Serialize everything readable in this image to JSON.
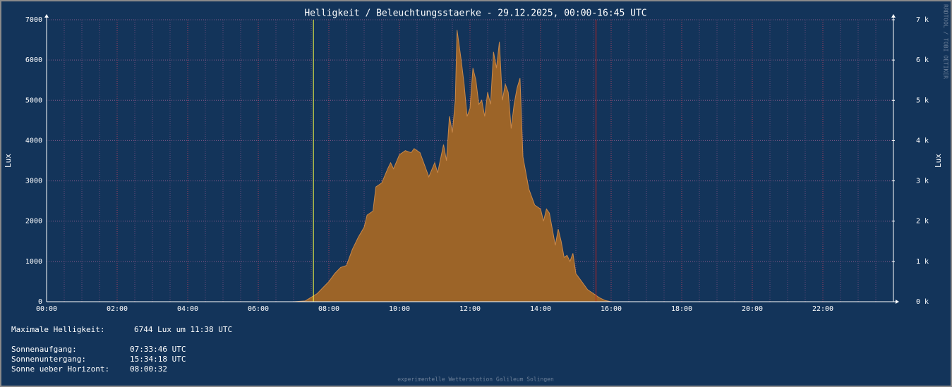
{
  "chart_data": {
    "type": "area",
    "title": "Helligkeit / Beleuchtungsstaerke - 29.12.2025, 00:00-16:45 UTC",
    "ylabel": "Lux",
    "y2label": "Lux",
    "side_text": "RRDTOOL / TOBI OETIKER",
    "footer": "experimentelle Wetterstation Galileum Solingen",
    "xlim": [
      0,
      24
    ],
    "xticks": [
      {
        "value": 0,
        "label": "00:00"
      },
      {
        "value": 2,
        "label": "02:00"
      },
      {
        "value": 4,
        "label": "04:00"
      },
      {
        "value": 6,
        "label": "06:00"
      },
      {
        "value": 8,
        "label": "08:00"
      },
      {
        "value": 10,
        "label": "10:00"
      },
      {
        "value": 12,
        "label": "12:00"
      },
      {
        "value": 14,
        "label": "14:00"
      },
      {
        "value": 16,
        "label": "16:00"
      },
      {
        "value": 18,
        "label": "18:00"
      },
      {
        "value": 20,
        "label": "20:00"
      },
      {
        "value": 22,
        "label": "22:00"
      }
    ],
    "ylim": [
      0,
      7000
    ],
    "yticks": [
      0,
      1000,
      2000,
      3000,
      4000,
      5000,
      6000,
      7000
    ],
    "y2lim": [
      0,
      7000
    ],
    "y2ticks": [
      {
        "value": 0,
        "label": "0 k"
      },
      {
        "value": 1000,
        "label": "1 k"
      },
      {
        "value": 2000,
        "label": "2 k"
      },
      {
        "value": 3000,
        "label": "3 k"
      },
      {
        "value": 4000,
        "label": "4 k"
      },
      {
        "value": 5000,
        "label": "5 k"
      },
      {
        "value": 6000,
        "label": "6 k"
      },
      {
        "value": 7000,
        "label": "7 k"
      }
    ],
    "grid": true,
    "x": [
      7.0,
      7.333,
      7.667,
      7.833,
      8.0,
      8.167,
      8.333,
      8.5,
      8.667,
      8.833,
      9.0,
      9.083,
      9.25,
      9.333,
      9.5,
      9.667,
      9.75,
      9.833,
      10.0,
      10.167,
      10.333,
      10.417,
      10.583,
      10.667,
      10.833,
      11.0,
      11.083,
      11.25,
      11.333,
      11.417,
      11.5,
      11.583,
      11.633,
      11.75,
      11.833,
      11.917,
      12.0,
      12.083,
      12.167,
      12.25,
      12.333,
      12.417,
      12.5,
      12.583,
      12.667,
      12.75,
      12.833,
      12.917,
      13.0,
      13.083,
      13.167,
      13.25,
      13.333,
      13.417,
      13.5,
      13.667,
      13.833,
      14.0,
      14.083,
      14.167,
      14.25,
      14.333,
      14.417,
      14.5,
      14.583,
      14.667,
      14.75,
      14.833,
      14.917,
      15.0,
      15.167,
      15.333,
      15.5,
      15.667,
      15.833,
      16.0
    ],
    "series": [
      {
        "name": "Lux",
        "color": "#9c6428",
        "line_color": "#c8884a",
        "values": [
          0,
          20,
          200,
          350,
          500,
          700,
          850,
          900,
          1300,
          1600,
          1850,
          2150,
          2250,
          2850,
          2950,
          3300,
          3450,
          3300,
          3650,
          3750,
          3700,
          3800,
          3700,
          3500,
          3100,
          3450,
          3200,
          3900,
          3500,
          4600,
          4200,
          5000,
          6744,
          6000,
          5400,
          4600,
          4800,
          5800,
          5500,
          4900,
          5000,
          4600,
          5200,
          4900,
          6200,
          5800,
          6450,
          5000,
          5400,
          5200,
          4300,
          4900,
          5300,
          5550,
          3600,
          2800,
          2400,
          2300,
          2000,
          2300,
          2200,
          1800,
          1400,
          1800,
          1500,
          1100,
          1150,
          1000,
          1200,
          700,
          500,
          300,
          200,
          100,
          30,
          0
        ]
      }
    ],
    "vlines": [
      {
        "x": 7.5628,
        "color": "#ffff40"
      },
      {
        "x": 15.5717,
        "color": "#c02020"
      }
    ],
    "summary": [
      {
        "label": "Maximale Helligkeit:",
        "value": "6744 Lux um 11:38 UTC"
      },
      {
        "label": "Sonnenaufgang:",
        "value": "07:33:46 UTC"
      },
      {
        "label": "Sonnenuntergang:",
        "value": "15:34:18 UTC"
      },
      {
        "label": "Sonne ueber Horizont:",
        "value": "08:00:32"
      }
    ]
  }
}
